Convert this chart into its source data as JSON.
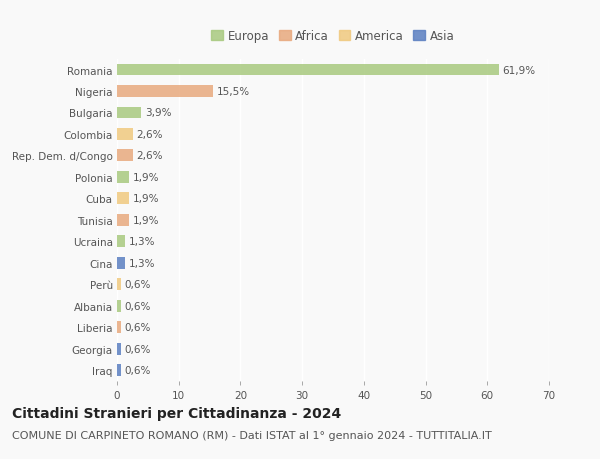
{
  "countries": [
    "Romania",
    "Nigeria",
    "Bulgaria",
    "Colombia",
    "Rep. Dem. d/Congo",
    "Polonia",
    "Cuba",
    "Tunisia",
    "Ucraina",
    "Cina",
    "Perù",
    "Albania",
    "Liberia",
    "Georgia",
    "Iraq"
  ],
  "values": [
    61.9,
    15.5,
    3.9,
    2.6,
    2.6,
    1.9,
    1.9,
    1.9,
    1.3,
    1.3,
    0.6,
    0.6,
    0.6,
    0.6,
    0.6
  ],
  "labels": [
    "61,9%",
    "15,5%",
    "3,9%",
    "2,6%",
    "2,6%",
    "1,9%",
    "1,9%",
    "1,9%",
    "1,3%",
    "1,3%",
    "0,6%",
    "0,6%",
    "0,6%",
    "0,6%",
    "0,6%"
  ],
  "regions": [
    "Europa",
    "Africa",
    "Europa",
    "America",
    "Africa",
    "Europa",
    "America",
    "Africa",
    "Europa",
    "Asia",
    "America",
    "Europa",
    "Africa",
    "Asia",
    "Asia"
  ],
  "region_colors": {
    "Europa": "#a8c97f",
    "Africa": "#e8a97e",
    "America": "#f0c97f",
    "Asia": "#5b7fc1"
  },
  "legend_items": [
    "Europa",
    "Africa",
    "America",
    "Asia"
  ],
  "legend_colors": [
    "#a8c97f",
    "#e8a97e",
    "#f0c97f",
    "#5b7fc1"
  ],
  "xlim": [
    0,
    70
  ],
  "xticks": [
    0,
    10,
    20,
    30,
    40,
    50,
    60,
    70
  ],
  "title": "Cittadini Stranieri per Cittadinanza - 2024",
  "subtitle": "COMUNE DI CARPINETO ROMANO (RM) - Dati ISTAT al 1° gennaio 2024 - TUTTITALIA.IT",
  "background_color": "#f9f9f9",
  "bar_height": 0.55,
  "title_fontsize": 10,
  "subtitle_fontsize": 8,
  "label_fontsize": 7.5,
  "tick_fontsize": 7.5,
  "legend_fontsize": 8.5
}
